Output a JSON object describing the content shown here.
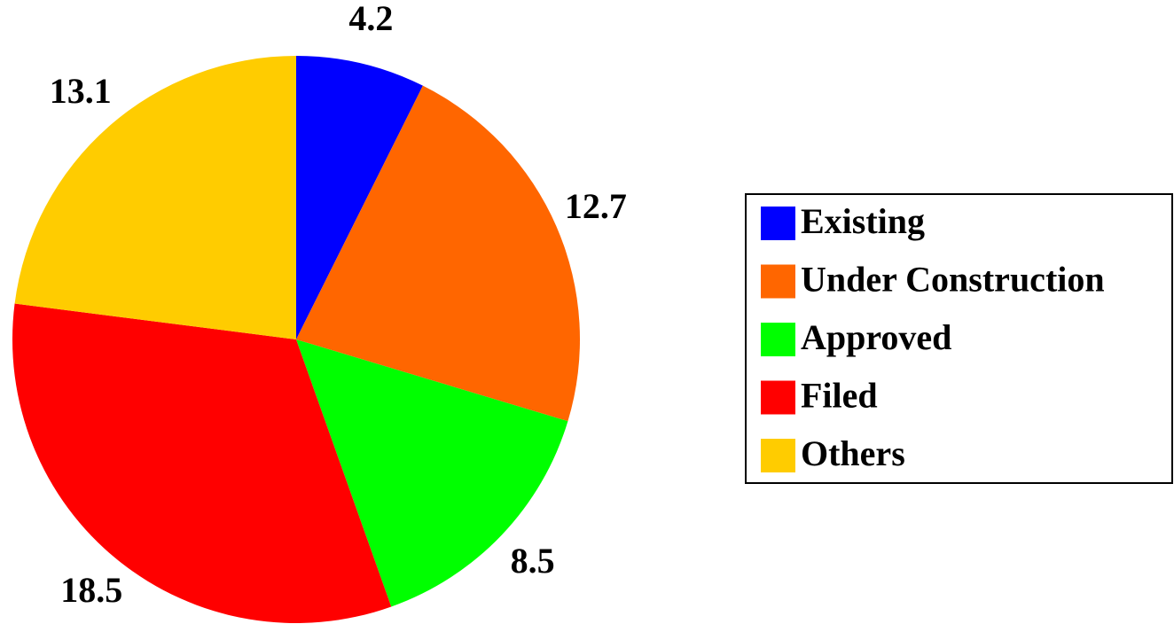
{
  "chart_data": {
    "type": "pie",
    "categories": [
      "Existing",
      "Under Construction",
      "Approved",
      "Filed",
      "Others"
    ],
    "values": [
      4.2,
      12.7,
      8.5,
      18.5,
      13.1
    ],
    "colors": [
      "#0000ff",
      "#ff6600",
      "#00ff00",
      "#ff0000",
      "#ffcc00"
    ],
    "legend": "right"
  }
}
